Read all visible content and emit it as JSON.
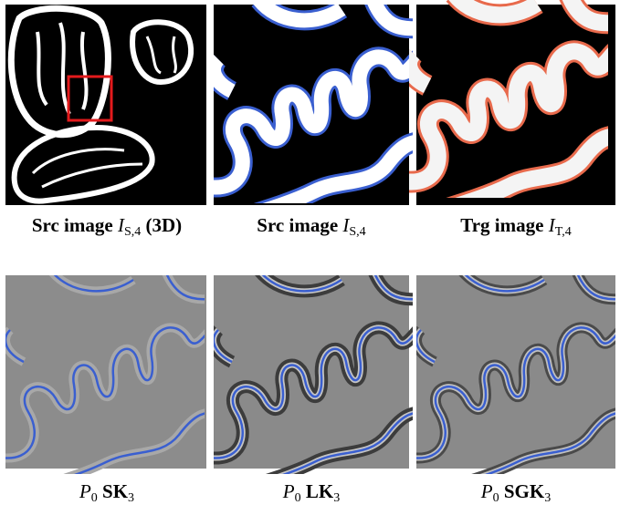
{
  "captions": [
    {
      "bold": "Src image",
      "math": "I",
      "math_sub": "S,4",
      "bold_suffix": "(3D)"
    },
    {
      "bold": "Src image",
      "math": "I",
      "math_sub": "S,4"
    },
    {
      "bold": "Trg image",
      "math": "I",
      "math_sub": "T,4"
    },
    {
      "math": "P",
      "math_sub": "0",
      "bold": "SK",
      "bold_sub": "3"
    },
    {
      "math": "P",
      "math_sub": "0",
      "bold": "LK",
      "bold_sub": "3"
    },
    {
      "math": "P",
      "math_sub": "0",
      "bold": "SGK",
      "bold_sub": "3"
    }
  ]
}
